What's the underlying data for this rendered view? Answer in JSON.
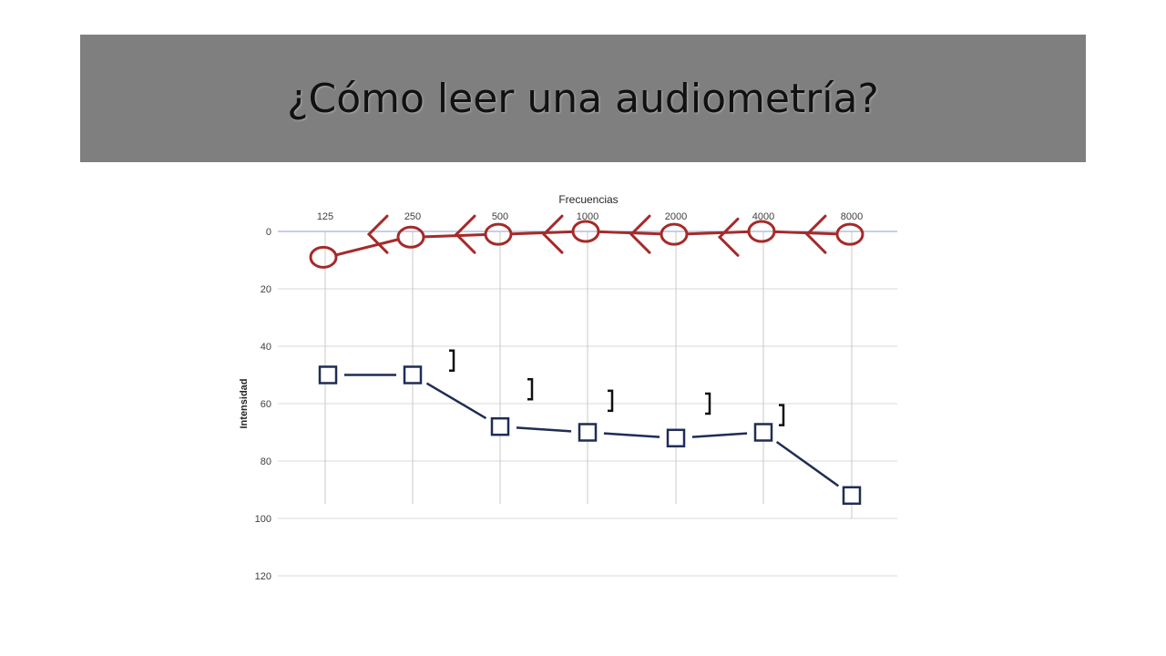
{
  "slide": {
    "title": "¿Cómo leer una audiometría?"
  },
  "chart_data": {
    "type": "line",
    "x_title": "Frecuencias",
    "y_title": "Intensidad",
    "x_categories": [
      "125",
      "250",
      "500",
      "1000",
      "2000",
      "4000",
      "8000"
    ],
    "y_ticks": [
      0,
      20,
      40,
      60,
      80,
      100,
      120
    ],
    "ylim": [
      0,
      120
    ],
    "y_reversed": true,
    "x_axis_position": "top",
    "grid": true,
    "series": [
      {
        "marker": "circle",
        "color": "#a52a2a",
        "values": [
          9,
          2,
          1,
          0,
          1,
          0,
          1
        ]
      },
      {
        "marker": "arrow-left",
        "color": "#a52a2a",
        "values": [
          1,
          1,
          1,
          1,
          2,
          1,
          null
        ]
      },
      {
        "marker": "square",
        "color": "#1f2d55",
        "values": [
          50,
          50,
          68,
          70,
          72,
          70,
          92
        ]
      },
      {
        "marker": "bracket-right",
        "color": "#1f2d55",
        "values": [
          45,
          55,
          59,
          60,
          64,
          null,
          null
        ]
      }
    ]
  }
}
